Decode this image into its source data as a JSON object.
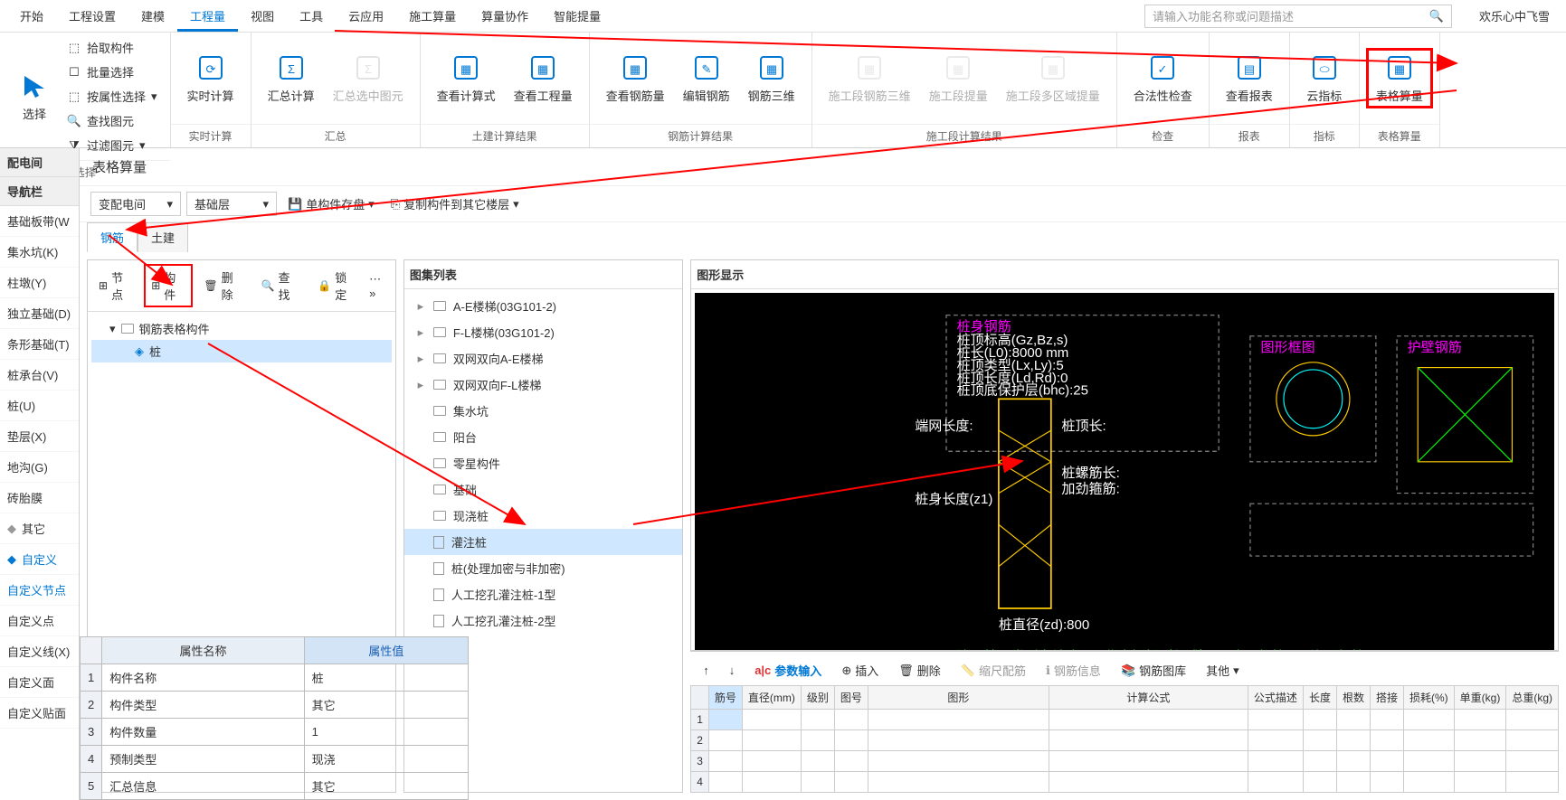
{
  "menu": {
    "items": [
      "开始",
      "工程设置",
      "建模",
      "工程量",
      "视图",
      "工具",
      "云应用",
      "施工算量",
      "算量协作",
      "智能提量"
    ],
    "active_index": 3
  },
  "search": {
    "placeholder": "请输入功能名称或问题描述"
  },
  "user": "欢乐心中飞雪",
  "ribbon": {
    "groups": [
      {
        "label": "选择",
        "big": {
          "label": "选择",
          "color": "#0078d4"
        },
        "small": [
          "拾取构件",
          "批量选择",
          "按属性选择",
          "查找图元",
          "过滤图元"
        ]
      },
      {
        "label": "实时计算",
        "buttons": [
          {
            "label": "实时计算",
            "color": "#0078d4"
          }
        ]
      },
      {
        "label": "汇总",
        "buttons": [
          {
            "label": "汇总计算",
            "color": "#0078d4"
          },
          {
            "label": "汇总选中图元",
            "color": "#bbb",
            "disabled": true
          }
        ]
      },
      {
        "label": "土建计算结果",
        "buttons": [
          {
            "label": "查看计算式",
            "color": "#0078d4"
          },
          {
            "label": "查看工程量",
            "color": "#0078d4"
          }
        ]
      },
      {
        "label": "钢筋计算结果",
        "buttons": [
          {
            "label": "查看钢筋量",
            "color": "#0078d4"
          },
          {
            "label": "编辑钢筋",
            "color": "#0078d4"
          },
          {
            "label": "钢筋三维",
            "color": "#0078d4"
          }
        ]
      },
      {
        "label": "施工段计算结果",
        "buttons": [
          {
            "label": "施工段钢筋三维",
            "color": "#ccc",
            "disabled": true
          },
          {
            "label": "施工段提量",
            "color": "#ccc",
            "disabled": true
          },
          {
            "label": "施工段多区域提量",
            "color": "#ccc",
            "disabled": true
          }
        ]
      },
      {
        "label": "检查",
        "buttons": [
          {
            "label": "合法性检查",
            "color": "#0078d4"
          }
        ]
      },
      {
        "label": "报表",
        "buttons": [
          {
            "label": "查看报表",
            "color": "#0078d4"
          }
        ]
      },
      {
        "label": "指标",
        "buttons": [
          {
            "label": "云指标",
            "color": "#0078d4"
          }
        ]
      },
      {
        "label": "表格算量",
        "buttons": [
          {
            "label": "表格算量",
            "color": "#0078d4",
            "highlight": true
          }
        ]
      }
    ]
  },
  "rail": {
    "titles": [
      "配电间",
      "导航栏"
    ],
    "items": [
      "基础板带(W",
      "集水坑(K)",
      "柱墩(Y)",
      "独立基础(D)",
      "条形基础(T)",
      "桩承台(V)",
      "桩(U)",
      "垫层(X)",
      "地沟(G)",
      "砖胎膜"
    ],
    "extra": [
      "其它",
      "自定义"
    ],
    "custom": [
      "自定义节点",
      "自定义点",
      "自定义线(X)",
      "自定义面",
      "自定义贴面"
    ]
  },
  "main": {
    "title": "表格算量",
    "dropdown1": "变配电间",
    "dropdown2": "基础层",
    "btn_save": "单构件存盘",
    "btn_copy": "复制构件到其它楼层",
    "tabs": [
      "钢筋",
      "土建"
    ],
    "tab_active": 0
  },
  "left_panel": {
    "toolbar": [
      "节点",
      "构件",
      "删除",
      "查找",
      "锁定"
    ],
    "root": "钢筋表格构件",
    "child": "桩"
  },
  "tuji": {
    "title": "图集列表",
    "items": [
      {
        "t": "A-E楼梯(03G101-2)",
        "tw": "▸"
      },
      {
        "t": "F-L楼梯(03G101-2)",
        "tw": "▸"
      },
      {
        "t": "双网双向A-E楼梯",
        "tw": "▸"
      },
      {
        "t": "双网双向F-L楼梯",
        "tw": "▸"
      },
      {
        "t": "集水坑",
        "tw": ""
      },
      {
        "t": "阳台",
        "tw": ""
      },
      {
        "t": "零星构件",
        "tw": ""
      },
      {
        "t": "基础",
        "tw": ""
      },
      {
        "t": "现浇桩",
        "tw": ""
      },
      {
        "t": "灌注桩",
        "tw": "",
        "sel": true,
        "doc": true
      },
      {
        "t": "桩(处理加密与非加密)",
        "tw": "",
        "doc": true
      },
      {
        "t": "人工挖孔灌注桩-1型",
        "tw": "",
        "doc": true
      },
      {
        "t": "人工挖孔灌注桩-2型",
        "tw": "",
        "doc": true
      }
    ]
  },
  "graph": {
    "title": "图形显示"
  },
  "props": {
    "headers": [
      "属性名称",
      "属性值"
    ],
    "rows": [
      [
        "构件名称",
        "桩"
      ],
      [
        "构件类型",
        "其它"
      ],
      [
        "构件数量",
        "1"
      ],
      [
        "预制类型",
        "现浇"
      ],
      [
        "汇总信息",
        "其它"
      ]
    ]
  },
  "params": {
    "toolbar": [
      "参数输入",
      "插入",
      "删除",
      "缩尺配筋",
      "钢筋信息",
      "钢筋图库",
      "其他"
    ],
    "headers": [
      "筋号",
      "直径(mm)",
      "级别",
      "图号",
      "图形",
      "计算公式",
      "公式描述",
      "长度",
      "根数",
      "搭接",
      "损耗(%)",
      "单重(kg)",
      "总重(kg)"
    ],
    "rows": 4
  }
}
